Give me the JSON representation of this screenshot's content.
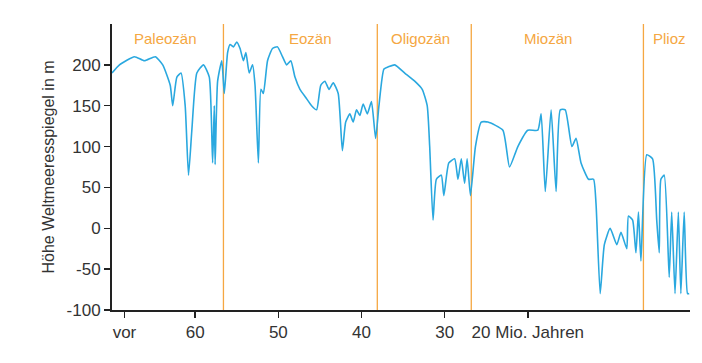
{
  "chart_data": {
    "type": "line",
    "y_label": "Höhe Weltmeeresspiegel in m",
    "color": "#2aa8df",
    "x": [
      70,
      69.1,
      67.3,
      66.1,
      64.8,
      63.9,
      63.0,
      62.7,
      62.2,
      61.7,
      61.2,
      60.8,
      60.4,
      59.8,
      59.0,
      58.3,
      57.9,
      57.7,
      57.6,
      57.3,
      56.8,
      56.5,
      56.1,
      55.8,
      55.4,
      55.0,
      54.6,
      54.2,
      53.9,
      53.5,
      53.1,
      52.8,
      52.4,
      52.1,
      51.8,
      51.3,
      50.7,
      50.1,
      49.5,
      49.0,
      48.5,
      48.0,
      47.4,
      46.7,
      46.0,
      45.4,
      44.9,
      44.4,
      43.9,
      43.4,
      42.8,
      42.3,
      41.9,
      41.4,
      41.0,
      40.6,
      40.2,
      39.8,
      39.3,
      38.8,
      38.3,
      37.9,
      37.3,
      36.7,
      36.0,
      34.8,
      33.6,
      32.7,
      32.1,
      31.8,
      31.4,
      31.0,
      30.4,
      30.1,
      29.5,
      28.8,
      28.4,
      28.0,
      27.6,
      27.3,
      26.9,
      26.3,
      25.6,
      24.8,
      23.0,
      22.2,
      21.2,
      20.0,
      18.8,
      18.4,
      17.9,
      17.2,
      16.6,
      16.1,
      15.5,
      14.7,
      14.2,
      13.6,
      12.7,
      12.1,
      11.8,
      11.3,
      10.8,
      10.1,
      9.3,
      8.8,
      8.1,
      7.9,
      7.4,
      7.0,
      6.7,
      6.4,
      5.7,
      5.0,
      4.5,
      4.2,
      4.0,
      3.6,
      3.0,
      2.7,
      2.3,
      1.9,
      1.6,
      1.2,
      0.8,
      0.6
    ],
    "values": [
      190,
      200,
      210,
      205,
      210,
      200,
      175,
      150,
      185,
      190,
      150,
      65,
      120,
      190,
      200,
      185,
      80,
      150,
      78,
      180,
      205,
      165,
      215,
      225,
      222,
      228,
      220,
      205,
      215,
      190,
      200,
      175,
      80,
      170,
      165,
      205,
      220,
      222,
      210,
      200,
      205,
      185,
      170,
      160,
      150,
      145,
      175,
      180,
      170,
      178,
      165,
      95,
      130,
      140,
      130,
      145,
      138,
      152,
      140,
      155,
      110,
      150,
      195,
      198,
      200,
      190,
      180,
      170,
      150,
      100,
      10,
      60,
      65,
      40,
      80,
      85,
      60,
      85,
      55,
      85,
      40,
      100,
      130,
      130,
      120,
      75,
      100,
      120,
      120,
      140,
      45,
      145,
      45,
      145,
      145,
      100,
      110,
      80,
      60,
      60,
      30,
      -80,
      -20,
      0,
      -20,
      -5,
      -25,
      15,
      10,
      -30,
      20,
      -40,
      90,
      85,
      10,
      -30,
      60,
      65,
      -60,
      20,
      -80,
      20,
      -80,
      20,
      -80,
      -80
    ],
    "xlim": [
      70,
      0.5
    ],
    "xticks": [
      {
        "value": 68.5,
        "label": "vor"
      },
      60,
      50,
      40,
      30,
      {
        "value": 20,
        "label": "20 Mio. Jahren"
      }
    ],
    "ylim": [
      -100,
      250
    ],
    "yticks": [
      -100,
      -50,
      0,
      50,
      100,
      150,
      200
    ],
    "grid": false,
    "epoch_boundaries": [
      56.6,
      38.1,
      26.8,
      6.1
    ],
    "boundary_color": "#f5a742",
    "annotations": [
      {
        "text": "Paleozän",
        "x": 67.6,
        "y": 232
      },
      {
        "text": "Eozän",
        "x": 48.9,
        "y": 232
      },
      {
        "text": "Oligozän",
        "x": 36.7,
        "y": 232
      },
      {
        "text": "Miozän",
        "x": 20.7,
        "y": 232
      },
      {
        "text": "Plioz",
        "x": 5.2,
        "y": 232
      }
    ]
  }
}
